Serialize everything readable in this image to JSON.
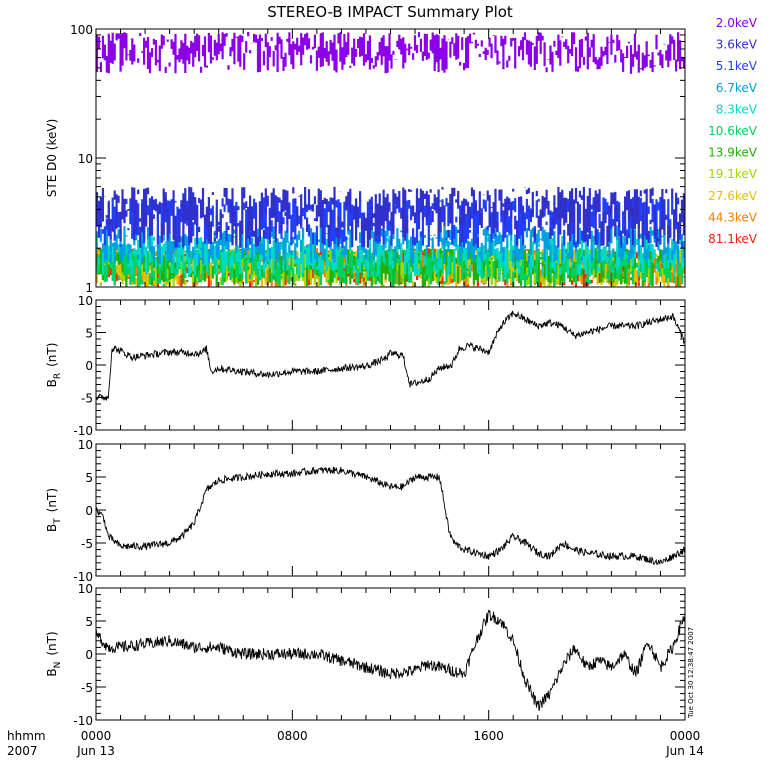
{
  "title": "STEREO-B IMPACT Summary Plot",
  "time_axis": {
    "row1_label": "hhmm",
    "row2_label": "2007",
    "ticks": [
      {
        "hour": 0,
        "time": "0000",
        "date": "Jun 13"
      },
      {
        "hour": 8,
        "time": "0800",
        "date": ""
      },
      {
        "hour": 16,
        "time": "1600",
        "date": ""
      },
      {
        "hour": 24,
        "time": "0000",
        "date": "Jun 14"
      }
    ]
  },
  "timestamp": "Tue Oct 30 12:38:47 2007",
  "chart_data": [
    {
      "type": "line",
      "panel": "ste",
      "ylabel": "STE D0 (keV)",
      "yscale": "log",
      "ylim": [
        1,
        100
      ],
      "yticks": [
        {
          "value": 1,
          "label": "1"
        },
        {
          "value": 10,
          "label": "10"
        },
        {
          "value": 100,
          "label": "100"
        }
      ],
      "xlim": [
        0,
        24
      ],
      "series": [
        {
          "name": "2.0keV",
          "color": "#8b00e8",
          "typical_range": [
            45,
            95
          ]
        },
        {
          "name": "3.6keV",
          "color": "#3030cc",
          "typical_range": [
            2,
            6
          ]
        },
        {
          "name": "5.1keV",
          "color": "#2040ff",
          "typical_range": [
            2,
            5
          ]
        },
        {
          "name": "6.7keV",
          "color": "#00a0e0",
          "typical_range": [
            1.5,
            3
          ]
        },
        {
          "name": "8.3keV",
          "color": "#00d8c8",
          "typical_range": [
            1.2,
            2.5
          ]
        },
        {
          "name": "10.6keV",
          "color": "#00d060",
          "typical_range": [
            1,
            2
          ]
        },
        {
          "name": "13.9keV",
          "color": "#20b000",
          "typical_range": [
            1,
            2
          ]
        },
        {
          "name": "19.1keV",
          "color": "#a0d800",
          "typical_range": [
            1,
            2
          ]
        },
        {
          "name": "27.6keV",
          "color": "#e8c000",
          "typical_range": [
            1,
            2
          ]
        },
        {
          "name": "44.3keV",
          "color": "#f08000",
          "typical_range": [
            1,
            2
          ]
        },
        {
          "name": "81.1keV",
          "color": "#ff2000",
          "typical_range": [
            1,
            2
          ]
        }
      ]
    },
    {
      "type": "line",
      "panel": "br",
      "ylabel": "B_R (nT)",
      "ylabel_main": "B",
      "ylabel_sub": "R",
      "ylabel_unit": "(nT)",
      "ylim": [
        -10,
        10
      ],
      "yticks": [
        {
          "value": 10,
          "label": "10"
        },
        {
          "value": 5,
          "label": "5"
        },
        {
          "value": 0,
          "label": "0"
        },
        {
          "value": -5,
          "label": "-5"
        },
        {
          "value": -10,
          "label": "-10"
        }
      ],
      "xlim": [
        0,
        24
      ],
      "x": [
        0,
        0.5,
        0.65,
        0.8,
        1.5,
        3,
        4.3,
        4.5,
        4.7,
        5,
        6,
        7,
        8,
        9,
        10,
        11,
        11.8,
        12,
        12.5,
        12.8,
        13.3,
        13.6,
        14,
        14.5,
        14.8,
        15.2,
        16,
        16.5,
        17,
        17.5,
        18,
        18.5,
        19,
        19.5,
        20,
        20.5,
        21,
        22,
        23,
        23.5,
        24
      ],
      "values": [
        -5,
        -5,
        2.5,
        2.5,
        1.2,
        2,
        1.8,
        2.5,
        -1,
        -0.5,
        -1,
        -1.5,
        -1,
        -1,
        -0.5,
        -0.2,
        1,
        1.8,
        1.5,
        -3,
        -2.5,
        -2,
        -0.5,
        0,
        2.5,
        3,
        2,
        6,
        8,
        7,
        6,
        6.5,
        6,
        4.5,
        5,
        5.5,
        6,
        6,
        7,
        7.5,
        3.5
      ]
    },
    {
      "type": "line",
      "panel": "bt",
      "ylabel": "B_T (nT)",
      "ylabel_main": "B",
      "ylabel_sub": "T",
      "ylabel_unit": "(nT)",
      "ylim": [
        -10,
        10
      ],
      "yticks": [
        {
          "value": 10,
          "label": "10"
        },
        {
          "value": 5,
          "label": "5"
        },
        {
          "value": 0,
          "label": "0"
        },
        {
          "value": -5,
          "label": "-5"
        },
        {
          "value": -10,
          "label": "-10"
        }
      ],
      "xlim": [
        0,
        24
      ],
      "x": [
        0,
        0.3,
        0.5,
        1,
        2,
        3,
        3.5,
        4,
        4.5,
        5,
        6,
        7,
        8,
        9,
        10,
        11,
        12,
        12.5,
        13,
        14,
        14.4,
        14.6,
        15,
        15.5,
        16,
        16.5,
        17,
        17.5,
        18,
        18.5,
        19,
        19.5,
        20,
        21,
        22,
        23,
        24
      ],
      "values": [
        0,
        -1,
        -4,
        -5.5,
        -5.5,
        -5,
        -4,
        -2,
        3,
        4.5,
        5,
        5.5,
        5.5,
        6,
        6,
        5,
        3.5,
        3.5,
        5,
        5,
        -3.5,
        -5,
        -6,
        -6.5,
        -7,
        -6,
        -4,
        -5,
        -6.5,
        -7,
        -5,
        -6,
        -6.5,
        -7,
        -7,
        -8,
        -6
      ]
    },
    {
      "type": "line",
      "panel": "bn",
      "ylabel": "B_N (nT)",
      "ylabel_main": "B",
      "ylabel_sub": "N",
      "ylabel_unit": "(nT)",
      "ylim": [
        -10,
        10
      ],
      "yticks": [
        {
          "value": 10,
          "label": "10"
        },
        {
          "value": 5,
          "label": "5"
        },
        {
          "value": 0,
          "label": "0"
        },
        {
          "value": -5,
          "label": "-5"
        },
        {
          "value": -10,
          "label": "-10"
        }
      ],
      "xlim": [
        0,
        24
      ],
      "x": [
        0,
        0.5,
        1,
        2,
        3,
        4,
        5,
        6,
        7,
        8,
        9,
        10,
        11,
        12,
        13,
        13.5,
        14,
        15,
        15.5,
        16,
        16.5,
        17,
        17.5,
        18,
        18.5,
        19,
        19.5,
        20,
        20.5,
        21,
        21.5,
        22,
        22.5,
        23,
        23.5,
        24
      ],
      "values": [
        3,
        1,
        1,
        1.5,
        2,
        1,
        1,
        0,
        0,
        0,
        0,
        -1,
        -2,
        -3,
        -2.5,
        -1.5,
        -2,
        -3,
        2,
        6,
        5,
        2,
        -4,
        -8,
        -6,
        -2,
        1,
        -2,
        -1,
        -2,
        0,
        -3,
        2,
        -2,
        1,
        6
      ]
    }
  ]
}
